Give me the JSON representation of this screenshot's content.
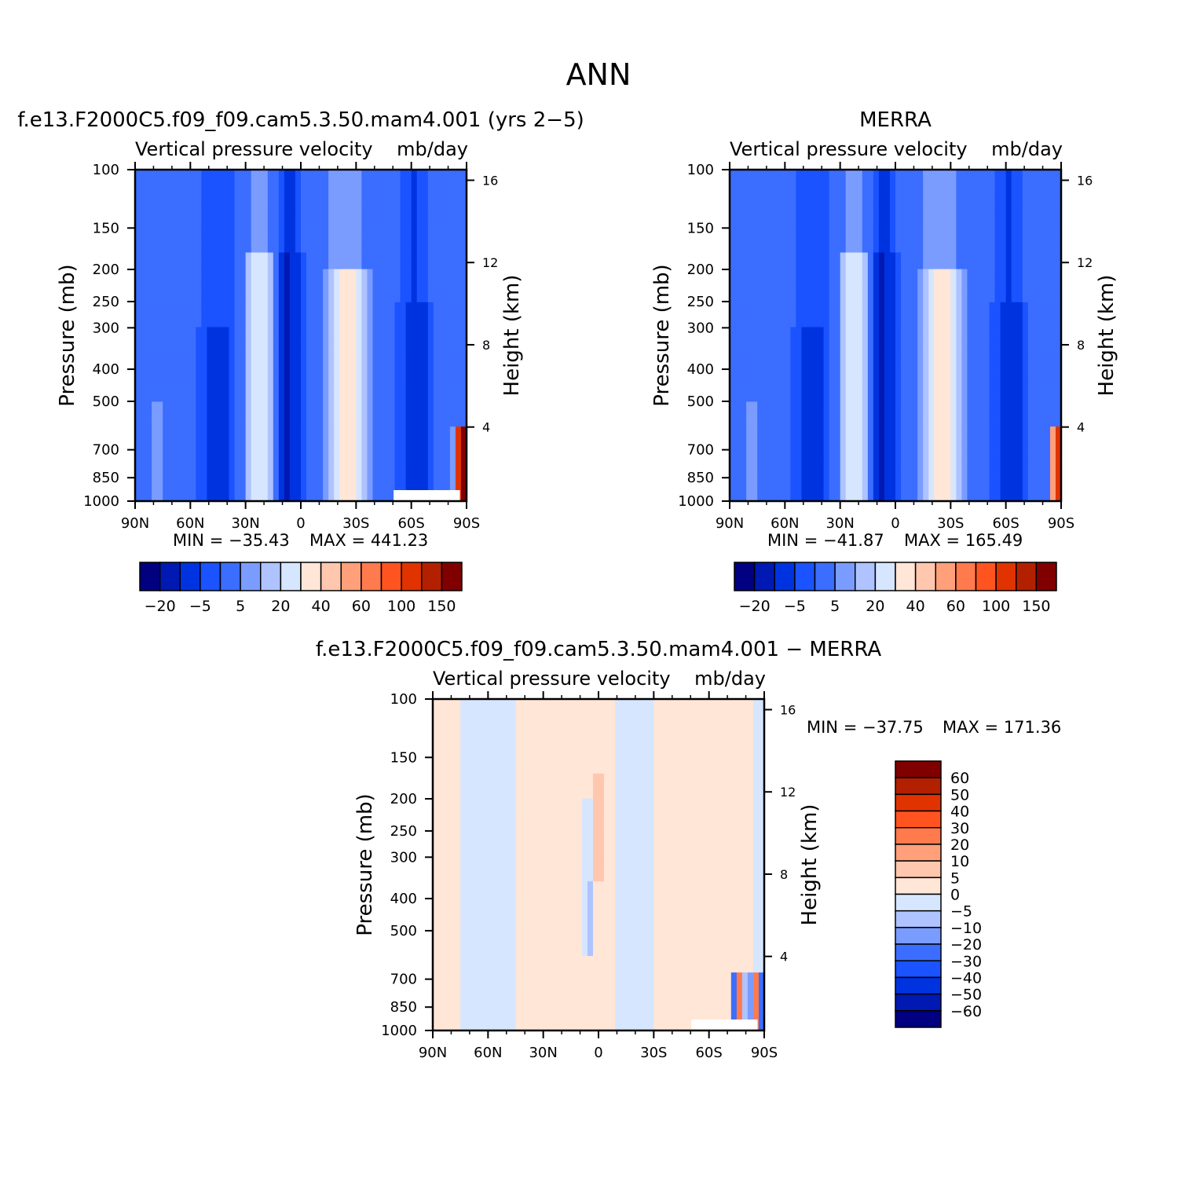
{
  "title": "ANN",
  "colors": {
    "model_scale": [
      "#000080",
      "#0019b3",
      "#0033e0",
      "#1a53ff",
      "#3b6dff",
      "#7a9cff",
      "#aec3ff",
      "#d6e6ff",
      "#ffe6d6",
      "#ffc7ae",
      "#ffa07a",
      "#ff7a4d",
      "#ff5420",
      "#e03300",
      "#b32000",
      "#800000"
    ],
    "diff_scale": [
      "#000080",
      "#0019b3",
      "#0033e0",
      "#1a53ff",
      "#3b6dff",
      "#7a9cff",
      "#aec3ff",
      "#d6e6ff",
      "#ffe6d6",
      "#ffc7ae",
      "#ffa07a",
      "#ff7a4d",
      "#ff5420",
      "#e03300",
      "#b32000",
      "#800000"
    ]
  },
  "chart_data": [
    {
      "type": "heatmap",
      "title": "f.e13.F2000C5.f09_f09.cam5.3.50.mam4.001 (yrs 2−5)",
      "subtitle": "Vertical pressure velocity",
      "units": "mb/day",
      "xlabel": "",
      "ylabel": "Pressure (mb)",
      "ylabel_right": "Height (km)",
      "x_ticks": [
        "90N",
        "60N",
        "30N",
        "0",
        "30S",
        "60S",
        "90S"
      ],
      "y_ticks": [
        "100",
        "150",
        "200",
        "250",
        "300",
        "400",
        "500",
        "700",
        "850",
        "1000"
      ],
      "y_right_ticks": [
        "16",
        "12",
        "8",
        "4"
      ],
      "min_label": "MIN = −35.43",
      "max_label": "MAX = 441.23",
      "min": -35.43,
      "max": 441.23,
      "colorbar_labels": [
        "−20",
        "−5",
        "5",
        "20",
        "40",
        "60",
        "100",
        "150"
      ]
    },
    {
      "type": "heatmap",
      "title": "MERRA",
      "subtitle": "Vertical pressure velocity",
      "units": "mb/day",
      "xlabel": "",
      "ylabel": "Pressure (mb)",
      "ylabel_right": "Height (km)",
      "x_ticks": [
        "90N",
        "60N",
        "30N",
        "0",
        "30S",
        "60S",
        "90S"
      ],
      "y_ticks": [
        "100",
        "150",
        "200",
        "250",
        "300",
        "400",
        "500",
        "700",
        "850",
        "1000"
      ],
      "y_right_ticks": [
        "16",
        "12",
        "8",
        "4"
      ],
      "min_label": "MIN = −41.87",
      "max_label": "MAX = 165.49",
      "min": -41.87,
      "max": 165.49,
      "colorbar_labels": [
        "−20",
        "−5",
        "5",
        "20",
        "40",
        "60",
        "100",
        "150"
      ]
    },
    {
      "type": "heatmap",
      "title": "f.e13.F2000C5.f09_f09.cam5.3.50.mam4.001 − MERRA",
      "subtitle": "Vertical pressure velocity",
      "units": "mb/day",
      "xlabel": "",
      "ylabel": "Pressure (mb)",
      "ylabel_right": "Height (km)",
      "x_ticks": [
        "90N",
        "60N",
        "30N",
        "0",
        "30S",
        "60S",
        "90S"
      ],
      "y_ticks": [
        "100",
        "150",
        "200",
        "250",
        "300",
        "400",
        "500",
        "700",
        "850",
        "1000"
      ],
      "y_right_ticks": [
        "16",
        "12",
        "8",
        "4"
      ],
      "min_label": "MIN = −37.75",
      "max_label": "MAX = 171.36",
      "min": -37.75,
      "max": 171.36,
      "colorbar_labels": [
        "60",
        "50",
        "40",
        "30",
        "20",
        "10",
        "5",
        "0",
        "−5",
        "−10",
        "−20",
        "−30",
        "−40",
        "−50",
        "−60"
      ]
    }
  ]
}
